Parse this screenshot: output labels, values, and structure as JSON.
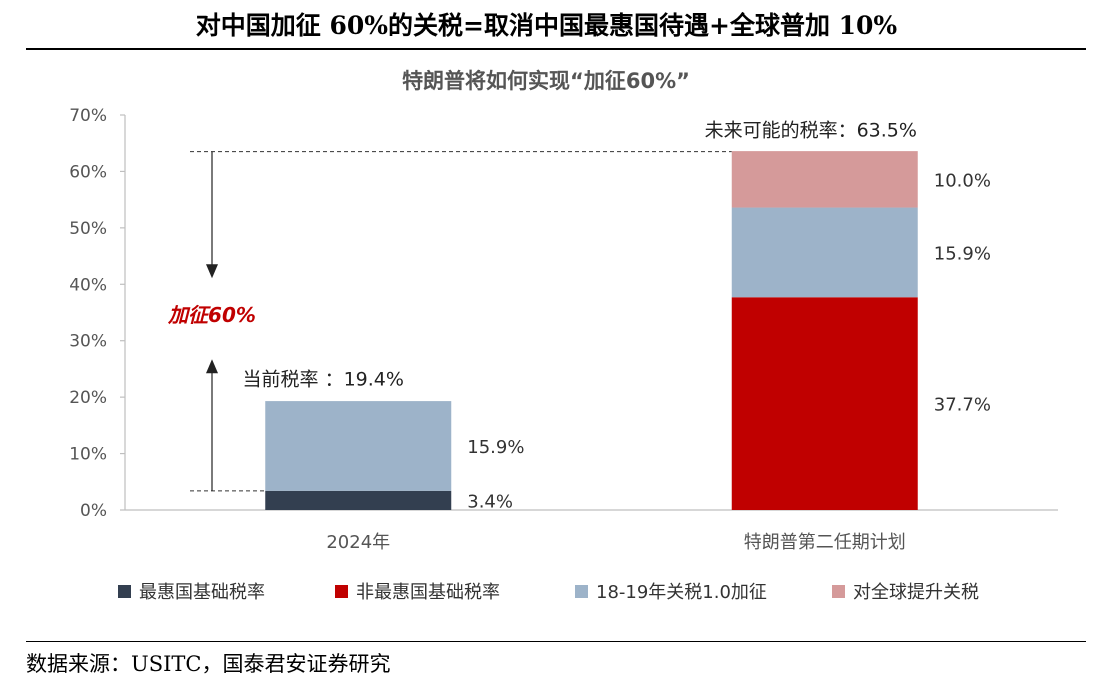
{
  "page": {
    "title": "对中国加征 60%的关税=取消中国最惠国待遇+全球普加 10%",
    "source": "数据来源：USITC，国泰君安证券研究"
  },
  "chart_data": {
    "type": "bar",
    "stacked": true,
    "title": "特朗普将如何实现“加征60%”",
    "xlabel": "",
    "ylabel": "",
    "ylim": [
      0,
      70
    ],
    "y_ticks": [
      "0%",
      "10%",
      "20%",
      "30%",
      "40%",
      "50%",
      "60%",
      "70%"
    ],
    "categories": [
      "2024年",
      "特朗普第二任期计划"
    ],
    "series": [
      {
        "name": "最惠国基础税率",
        "values": [
          3.4,
          0
        ],
        "color": "#333f50",
        "labels": [
          "3.4%",
          ""
        ]
      },
      {
        "name": "非最惠国基础税率",
        "values": [
          0,
          37.7
        ],
        "color": "#c00000",
        "labels": [
          "",
          "37.7%"
        ]
      },
      {
        "name": "18-19年关税1.0加征",
        "values": [
          15.9,
          15.9
        ],
        "color": "#9db3c9",
        "labels": [
          "15.9%",
          "15.9%"
        ]
      },
      {
        "name": "对全球提升关税",
        "values": [
          0,
          10.0
        ],
        "color": "#d59a9a",
        "labels": [
          "",
          "10.0%"
        ]
      }
    ],
    "totals": [
      19.4,
      63.5
    ],
    "total_labels": [
      "当前税率 ：19.4%",
      "未来可能的税率：63.5%"
    ],
    "annotation": "加征60%",
    "grid": false,
    "legend_position": "bottom"
  }
}
